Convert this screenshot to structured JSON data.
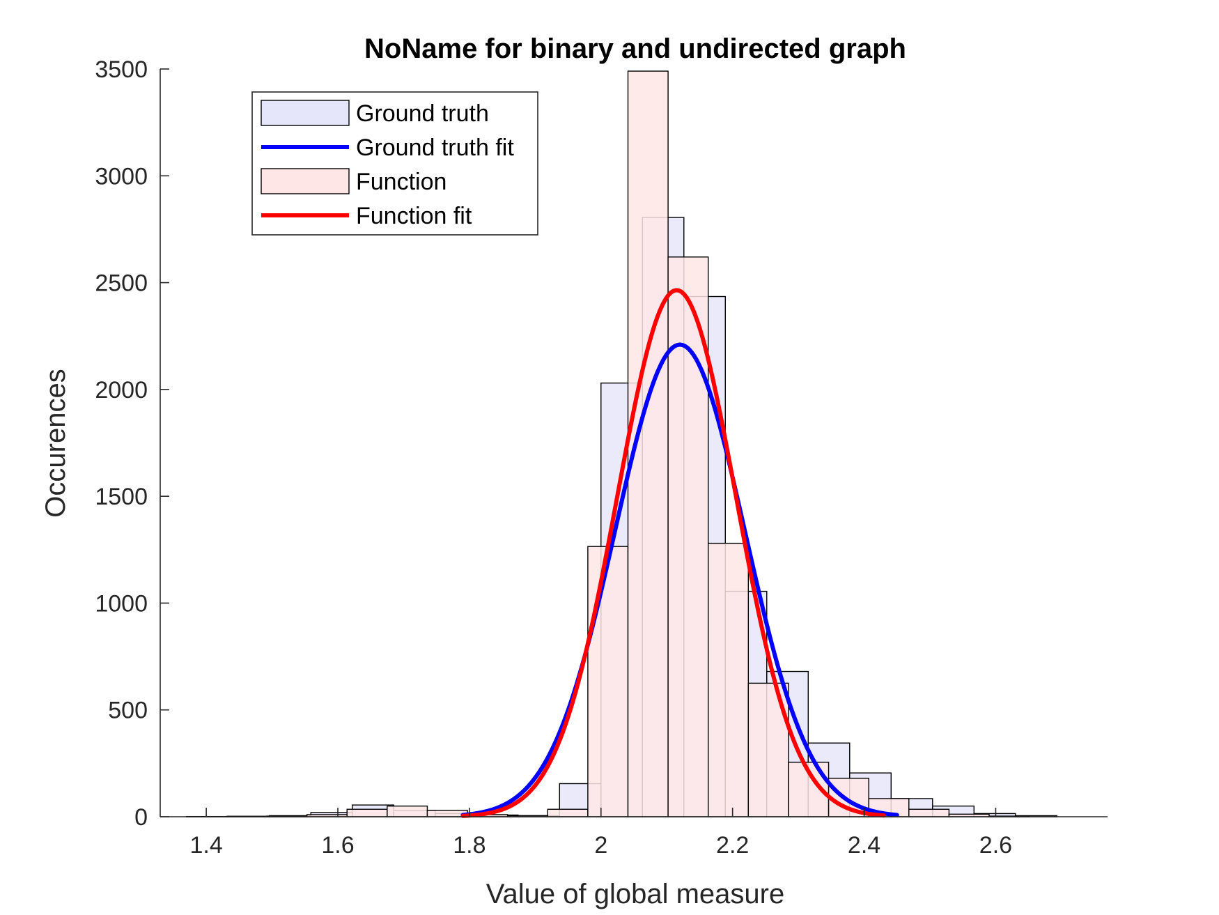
{
  "chart_data": {
    "type": "bar",
    "title": "NoName for binary and undirected graph",
    "xlabel": "Value of global measure",
    "ylabel": "Occurences",
    "xlim": [
      1.33,
      2.77
    ],
    "ylim": [
      0,
      3500
    ],
    "xticks": [
      1.4,
      1.6,
      1.8,
      2.0,
      2.2,
      2.4,
      2.6
    ],
    "xtick_labels": [
      "1.4",
      "1.6",
      "1.8",
      "2",
      "2.2",
      "2.4",
      "2.6"
    ],
    "yticks": [
      0,
      500,
      1000,
      1500,
      2000,
      2500,
      3000,
      3500
    ],
    "ytick_labels": [
      "0",
      "500",
      "1000",
      "1500",
      "2000",
      "2500",
      "3000",
      "3500"
    ],
    "grid": false,
    "legend_position": "top-left",
    "series": [
      {
        "name": "Ground truth",
        "kind": "histogram",
        "color": "#e6e6fa",
        "edges": [
          1.37,
          1.433,
          1.496,
          1.559,
          1.622,
          1.685,
          1.748,
          1.811,
          1.874,
          1.937,
          2.0,
          2.063,
          2.126,
          2.189,
          2.252,
          2.315,
          2.378,
          2.441,
          2.504,
          2.567,
          2.63,
          2.693
        ],
        "values": [
          1,
          2,
          5,
          20,
          55,
          30,
          15,
          8,
          5,
          155,
          2030,
          2805,
          2435,
          1055,
          680,
          345,
          205,
          85,
          50,
          15,
          5
        ]
      },
      {
        "name": "Function",
        "kind": "histogram",
        "color": "#ffe6e6",
        "edges": [
          1.37,
          1.431,
          1.492,
          1.553,
          1.614,
          1.675,
          1.736,
          1.797,
          1.858,
          1.919,
          1.98,
          2.041,
          2.102,
          2.163,
          2.224,
          2.285,
          2.346,
          2.407,
          2.468,
          2.529,
          2.59,
          2.651
        ],
        "values": [
          1,
          2,
          3,
          10,
          35,
          50,
          30,
          10,
          5,
          35,
          1265,
          3490,
          2620,
          1280,
          625,
          255,
          180,
          85,
          35,
          12,
          3
        ]
      },
      {
        "name": "Ground truth fit",
        "kind": "normal_fit",
        "color": "#0000ff",
        "mu": 2.12,
        "sigma": 0.0985,
        "peak": 2210,
        "x_range": [
          1.79,
          2.45
        ]
      },
      {
        "name": "Function fit",
        "kind": "normal_fit",
        "color": "#ff0000",
        "mu": 2.115,
        "sigma": 0.0905,
        "peak": 2465,
        "x_range": [
          1.79,
          2.43
        ]
      }
    ],
    "legend_order": [
      0,
      2,
      1,
      3
    ]
  }
}
